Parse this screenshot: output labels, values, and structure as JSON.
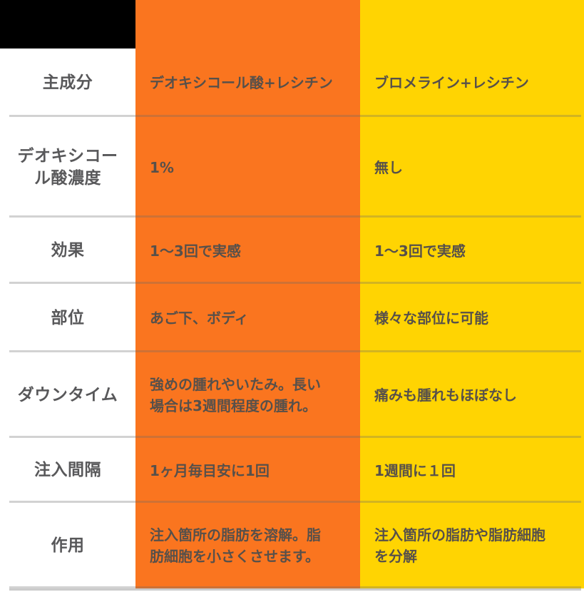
{
  "chart_data": {
    "type": "table",
    "description_visible_text_only": "comparison table, no visible title; top-left header cell is a solid black box, two treatment columns (orange / yellow) have no visible header text",
    "rows": [
      [
        "主成分",
        "デオキシコール酸+レシチン",
        "ブロメライン+レシチン"
      ],
      [
        "デオキシコー\nル酸濃度",
        "1%",
        "無し"
      ],
      [
        "効果",
        "1〜3回で実感",
        "1〜3回で実感"
      ],
      [
        "部位",
        "あご下、ボディ",
        "様々な部位に可能"
      ],
      [
        "ダウンタイム",
        "強めの腫れやいたみ。長い\n場合は3週間程度の腫れ。",
        "痛みも腫れもほぼなし"
      ],
      [
        "注入間隔",
        "1ヶ月毎目安に1回",
        "1週間に１回"
      ],
      [
        "作用",
        "注入箇所の脂肪を溶解。脂\n肪細胞を小さくさせます。",
        "注入箇所の脂肪や脂肪細胞\nを分解"
      ]
    ],
    "layout": {
      "grid": "off",
      "legend": "none"
    },
    "colors": {
      "column_a_bg": "#fa751f",
      "column_b_bg": "#ffd402",
      "header_box_bg": "#000000",
      "label_text": "#58585a",
      "cell_text": "#57504a",
      "divider_on_white": "#cbcbcb"
    }
  }
}
